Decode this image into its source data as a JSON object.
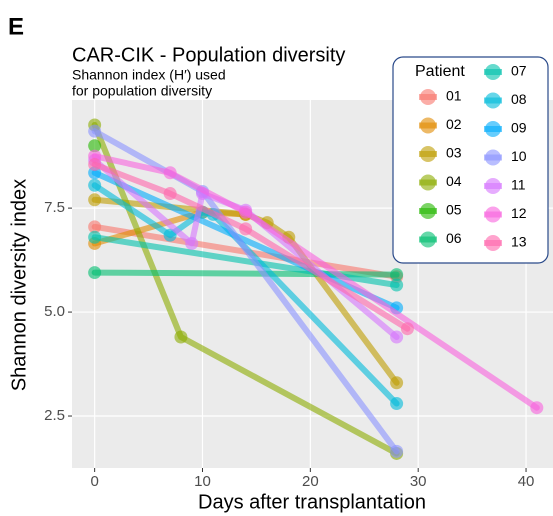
{
  "panel_label": "E",
  "chart_data": {
    "type": "line",
    "title": "CAR-CIK - Population diversity",
    "subtitle": [
      "Shannon index (H′) used",
      "for population diversity"
    ],
    "xlabel": "Days after transplantation",
    "ylabel": "Shannon diversity index",
    "legend_title": "Patient",
    "legend_position": "top-right",
    "grid": true,
    "xlim": [
      -2.1,
      42.5
    ],
    "ylim": [
      1.25,
      10.1
    ],
    "xticks": [
      0,
      10,
      20,
      30,
      40
    ],
    "yticks": [
      2.5,
      {
        "value": 5,
        "label": "5.0"
      },
      7.5
    ],
    "series": [
      {
        "name": "01",
        "color": "#F8766D",
        "x": [
          0,
          28
        ],
        "values": [
          7.05,
          5.85
        ]
      },
      {
        "name": "02",
        "color": "#E18A00",
        "x": [
          0,
          10,
          14
        ],
        "values": [
          6.65,
          7.4,
          7.35
        ]
      },
      {
        "name": "03",
        "color": "#BE9C00",
        "x": [
          0,
          14,
          16,
          18,
          28
        ],
        "values": [
          7.7,
          7.35,
          7.15,
          6.8,
          3.3
        ]
      },
      {
        "name": "04",
        "color": "#8CAB00",
        "x": [
          0,
          8,
          28
        ],
        "values": [
          9.5,
          4.4,
          1.6
        ]
      },
      {
        "name": "05",
        "color": "#24B700",
        "x": [
          0
        ],
        "values": [
          9.0
        ]
      },
      {
        "name": "06",
        "color": "#00BE70",
        "x": [
          0,
          28
        ],
        "values": [
          5.95,
          5.9
        ]
      },
      {
        "name": "07",
        "color": "#00C1AB",
        "x": [
          0,
          28
        ],
        "values": [
          6.8,
          5.65
        ]
      },
      {
        "name": "08",
        "color": "#00BBDA",
        "x": [
          0,
          7,
          10,
          11,
          28
        ],
        "values": [
          8.05,
          6.85,
          7.4,
          7.35,
          2.8
        ]
      },
      {
        "name": "09",
        "color": "#00ACFC",
        "x": [
          0,
          28
        ],
        "values": [
          8.35,
          5.1
        ]
      },
      {
        "name": "10",
        "color": "#8B93FF",
        "x": [
          0,
          10,
          28
        ],
        "values": [
          9.35,
          7.9,
          1.65
        ]
      },
      {
        "name": "11",
        "color": "#D575FE",
        "x": [
          0,
          9,
          10,
          14,
          28
        ],
        "values": [
          8.65,
          6.65,
          7.85,
          7.45,
          4.4
        ]
      },
      {
        "name": "12",
        "color": "#F962DD",
        "x": [
          0,
          7,
          14,
          41
        ],
        "values": [
          8.75,
          8.35,
          7.4,
          2.7
        ]
      },
      {
        "name": "13",
        "color": "#FF65AC",
        "x": [
          0,
          7,
          14,
          29
        ],
        "values": [
          8.55,
          7.85,
          7.0,
          4.6
        ]
      }
    ]
  }
}
